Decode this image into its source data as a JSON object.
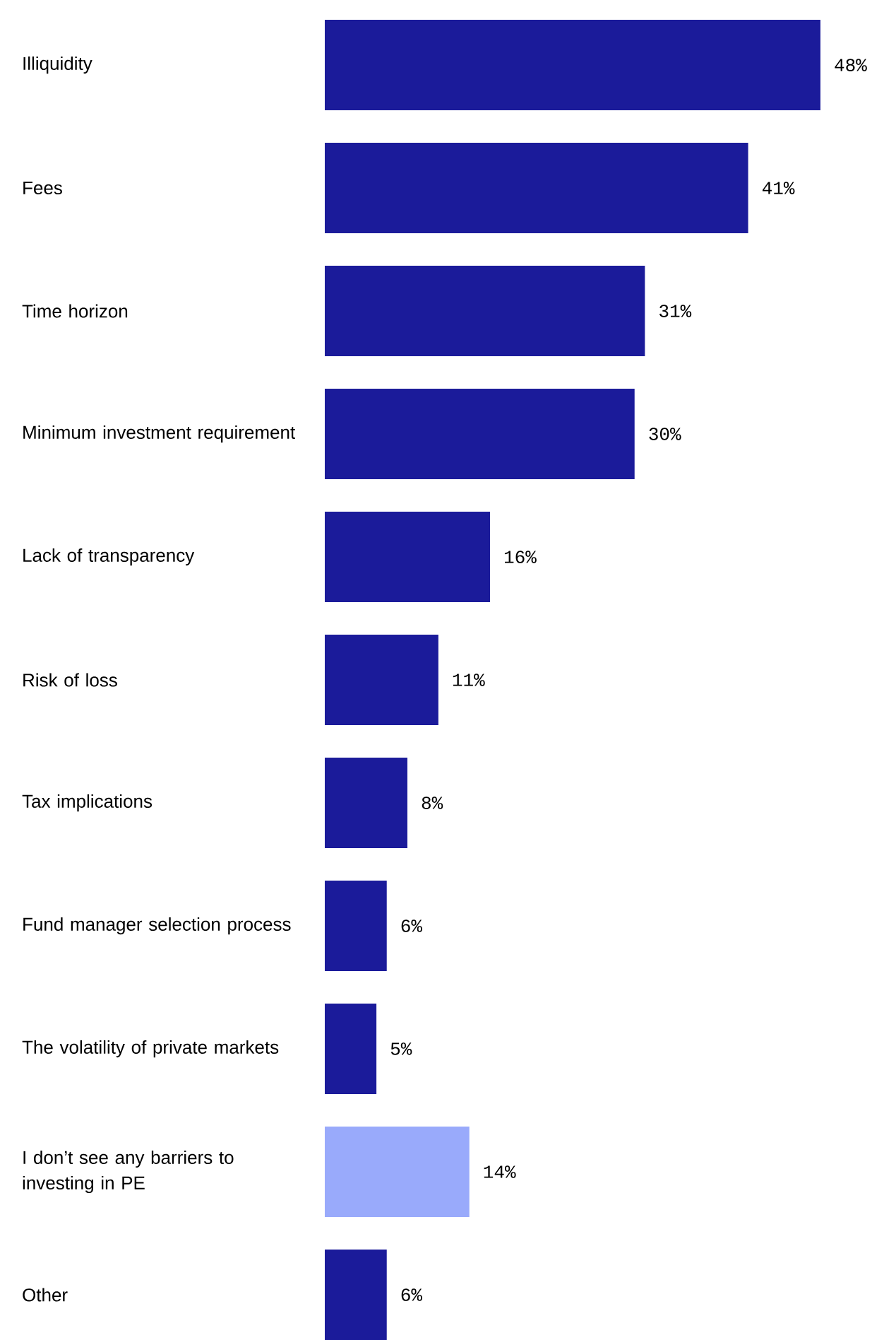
{
  "chart_data": {
    "type": "bar",
    "orientation": "horizontal",
    "categories": [
      "Illiquidity",
      "Fees",
      "Time horizon",
      "Minimum investment requirement",
      "Lack of transparency",
      "Risk of loss",
      "Tax implications",
      "Fund manager selection process",
      "The volatility of private markets",
      "I don’t see any barriers to investing in PE",
      "Other"
    ],
    "values": [
      48,
      41,
      31,
      30,
      16,
      11,
      8,
      6,
      5,
      14,
      6
    ],
    "value_labels": [
      "48%",
      "41%",
      "31%",
      "30%",
      "16%",
      "11%",
      "8%",
      "6%",
      "5%",
      "14%",
      "6%"
    ],
    "colors": [
      "#1b1b9a",
      "#1b1b9a",
      "#1b1b9a",
      "#1b1b9a",
      "#1b1b9a",
      "#1b1b9a",
      "#1b1b9a",
      "#1b1b9a",
      "#1b1b9a",
      "#99aafb",
      "#1b1b9a"
    ]
  }
}
